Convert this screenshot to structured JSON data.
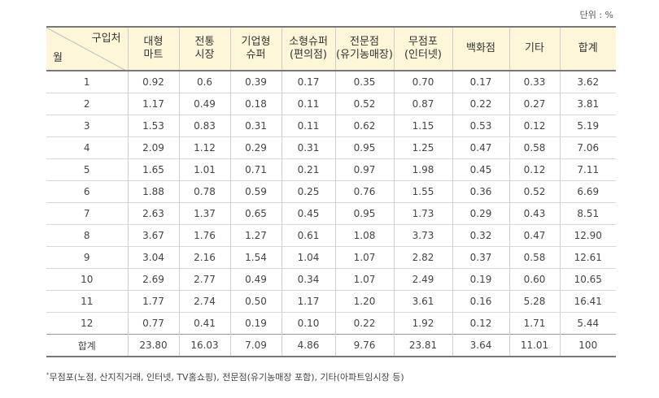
{
  "unit_label": "단위 : %",
  "header": {
    "corner_top": "구입처",
    "corner_bottom": "월",
    "columns": [
      [
        "대형",
        "마트"
      ],
      [
        "전통",
        "시장"
      ],
      [
        "기업형",
        "슈퍼"
      ],
      [
        "소형슈퍼",
        "(편의점)"
      ],
      [
        "전문점",
        "(유기농매장)"
      ],
      [
        "무점포",
        "(인터넷)"
      ],
      [
        "백화점"
      ],
      [
        "기타"
      ],
      [
        "합계"
      ]
    ]
  },
  "rows": [
    [
      "1",
      "0.92",
      "0.6",
      "0.39",
      "0.17",
      "0.35",
      "0.70",
      "0.17",
      "0.33",
      "3.62"
    ],
    [
      "2",
      "1.17",
      "0.49",
      "0.18",
      "0.11",
      "0.52",
      "0.87",
      "0.22",
      "0.27",
      "3.81"
    ],
    [
      "3",
      "1.53",
      "0.83",
      "0.31",
      "0.11",
      "0.62",
      "1.15",
      "0.53",
      "0.12",
      "5.19"
    ],
    [
      "4",
      "2.09",
      "1.12",
      "0.29",
      "0.31",
      "0.95",
      "1.25",
      "0.47",
      "0.58",
      "7.06"
    ],
    [
      "5",
      "1.65",
      "1.01",
      "0.71",
      "0.21",
      "0.97",
      "1.98",
      "0.45",
      "0.12",
      "7.11"
    ],
    [
      "6",
      "1.88",
      "0.78",
      "0.59",
      "0.25",
      "0.76",
      "1.55",
      "0.36",
      "0.52",
      "6.69"
    ],
    [
      "7",
      "2.63",
      "1.37",
      "0.65",
      "0.45",
      "0.95",
      "1.73",
      "0.29",
      "0.43",
      "8.51"
    ],
    [
      "8",
      "3.67",
      "1.76",
      "1.27",
      "0.61",
      "1.08",
      "3.73",
      "0.32",
      "0.47",
      "12.90"
    ],
    [
      "9",
      "3.04",
      "2.16",
      "1.54",
      "1.04",
      "1.07",
      "2.82",
      "0.37",
      "0.58",
      "12.61"
    ],
    [
      "10",
      "2.69",
      "2.77",
      "0.49",
      "0.34",
      "1.07",
      "2.49",
      "0.19",
      "0.60",
      "10.65"
    ],
    [
      "11",
      "1.77",
      "2.74",
      "0.50",
      "1.17",
      "1.20",
      "3.61",
      "0.16",
      "5.28",
      "16.41"
    ],
    [
      "12",
      "0.77",
      "0.41",
      "0.19",
      "0.10",
      "0.22",
      "1.92",
      "0.12",
      "1.71",
      "5.44"
    ]
  ],
  "total_row": [
    "합계",
    "23.80",
    "16.03",
    "7.09",
    "4.86",
    "9.76",
    "23.81",
    "3.64",
    "11.01",
    "100"
  ],
  "footnote": {
    "marker": "*",
    "text": "무점포(노점, 산지직거래, 인터넷, TV홈쇼핑), 전문점(유기농매장 포함), 기타(아파트임시장 등)"
  },
  "colors": {
    "header_bg": "#fdf6d8",
    "rule": "#777777"
  }
}
